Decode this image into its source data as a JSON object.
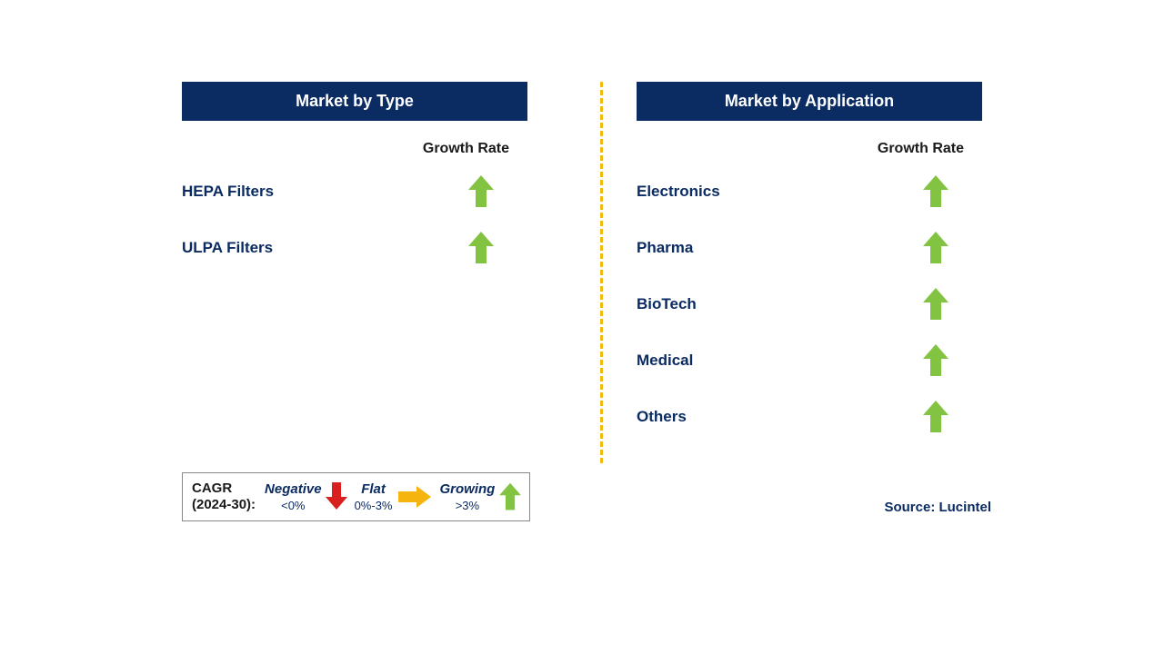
{
  "colors": {
    "header_bg": "#0b2b63",
    "text_navy": "#0b2b63",
    "text_black": "#1a1a1a",
    "divider": "#f2b90f",
    "arrow_green": "#82c341",
    "arrow_red": "#d9201e",
    "arrow_yellow": "#f6b40e"
  },
  "left": {
    "title": "Market by Type",
    "growth_label": "Growth Rate",
    "rows": [
      {
        "label": "HEPA Filters",
        "trend": "growing"
      },
      {
        "label": "ULPA Filters",
        "trend": "growing"
      }
    ]
  },
  "right": {
    "title": "Market by Application",
    "growth_label": "Growth Rate",
    "rows": [
      {
        "label": "Electronics",
        "trend": "growing"
      },
      {
        "label": "Pharma",
        "trend": "growing"
      },
      {
        "label": "BioTech",
        "trend": "growing"
      },
      {
        "label": "Medical",
        "trend": "growing"
      },
      {
        "label": "Others",
        "trend": "growing"
      }
    ]
  },
  "legend": {
    "cagr_line1": "CAGR",
    "cagr_line2": "(2024-30):",
    "negative_label": "Negative",
    "negative_range": "<0%",
    "flat_label": "Flat",
    "flat_range": "0%-3%",
    "growing_label": "Growing",
    "growing_range": ">3%"
  },
  "source": "Source: Lucintel"
}
